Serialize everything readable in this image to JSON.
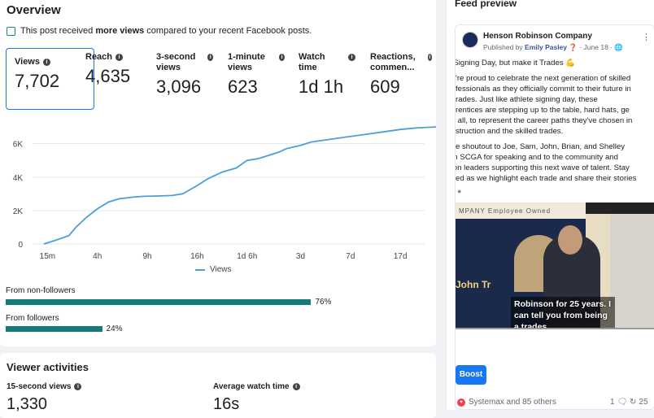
{
  "overview": {
    "title": "Overview",
    "notice_prefix": "This post received ",
    "notice_bold": "more views",
    "notice_suffix": " compared to your recent Facebook posts.",
    "metrics": [
      {
        "label": "Views",
        "value": "7,702"
      },
      {
        "label": "Reach",
        "value": "4,635"
      },
      {
        "label": "3-second views",
        "value": "3,096"
      },
      {
        "label": "1-minute views",
        "value": "623"
      },
      {
        "label": "Watch time",
        "value": "1d 1h"
      },
      {
        "label": "Reactions, commen...",
        "value": "609"
      }
    ],
    "legend": "Views",
    "from_non_followers_label": "From non-followers",
    "from_non_followers_pct": "76%",
    "from_followers_label": "From followers",
    "from_followers_pct": "24%",
    "non_followers_share": 0.76,
    "followers_share": 0.24
  },
  "chart_data": {
    "type": "line",
    "series": [
      {
        "name": "Views",
        "color": "#4a9fd8"
      }
    ],
    "x_ticks": [
      "15m",
      "4h",
      "9h",
      "16h",
      "1d 6h",
      "3d",
      "7d",
      "17d"
    ],
    "y_ticks": [
      "0",
      "2K",
      "4K",
      "6K"
    ],
    "ylim": [
      0,
      7200
    ],
    "points": [
      {
        "x": 0,
        "y": 0
      },
      {
        "x": 0.3,
        "y": 200
      },
      {
        "x": 0.5,
        "y": 350
      },
      {
        "x": 0.7,
        "y": 500
      },
      {
        "x": 0.9,
        "y": 1000
      },
      {
        "x": 1.2,
        "y": 1600
      },
      {
        "x": 1.5,
        "y": 2100
      },
      {
        "x": 1.8,
        "y": 2500
      },
      {
        "x": 2.1,
        "y": 2700
      },
      {
        "x": 2.5,
        "y": 2800
      },
      {
        "x": 2.8,
        "y": 2850
      },
      {
        "x": 3.2,
        "y": 2870
      },
      {
        "x": 3.6,
        "y": 2900
      },
      {
        "x": 3.9,
        "y": 3000
      },
      {
        "x": 4.3,
        "y": 3500
      },
      {
        "x": 4.6,
        "y": 3900
      },
      {
        "x": 5.0,
        "y": 4300
      },
      {
        "x": 5.4,
        "y": 4550
      },
      {
        "x": 5.7,
        "y": 5000
      },
      {
        "x": 6.0,
        "y": 5100
      },
      {
        "x": 6.3,
        "y": 5300
      },
      {
        "x": 6.6,
        "y": 5500
      },
      {
        "x": 6.8,
        "y": 5700
      },
      {
        "x": 7.2,
        "y": 5900
      },
      {
        "x": 7.5,
        "y": 6100
      },
      {
        "x": 8.0,
        "y": 6250
      },
      {
        "x": 8.5,
        "y": 6400
      },
      {
        "x": 9.0,
        "y": 6550
      },
      {
        "x": 9.5,
        "y": 6700
      },
      {
        "x": 10.0,
        "y": 6850
      },
      {
        "x": 10.5,
        "y": 6950
      },
      {
        "x": 11.0,
        "y": 7000
      }
    ],
    "grid": true
  },
  "viewer": {
    "title": "Viewer activities",
    "fifteen_label": "15-second views",
    "fifteen_value": "1,330",
    "avg_watch_label": "Average watch time",
    "avg_watch_value": "16s"
  },
  "preview": {
    "title": "Feed preview",
    "page_name": "Henson Robinson Company",
    "published_by_prefix": "Published by ",
    "published_by_name": "Emily Pasley",
    "date": "June 18",
    "post_lines": [
      "  Signing Day, but make it Trades 💪",
      "",
      " e're proud to celebrate the next generation of skilled",
      " ofessionals as they officially commit to their future in",
      "  trades. Just like athlete signing day, these",
      " prentices are stepping up to the table, hard hats, ge",
      " d all, to represent the career paths they've chosen in",
      " nstruction and the skilled trades.",
      "",
      " ge shoutout to Joe, Sam, John, Brian, and Shelley",
      " m SCGA for speaking and to the community and",
      " ion leaders supporting this next wave of talent. Stay",
      " ned as we highlight each trade and share their stories"
    ],
    "video_banner": "MPANY   Employee Owned",
    "video_side_text": "John Tr",
    "video_caption": "Robinson for 25 years. I can tell you from being a trades",
    "boost_label": "Boost",
    "reactions_text": "Systemax and 85 others",
    "comment_count": "1",
    "share_count": "25"
  }
}
